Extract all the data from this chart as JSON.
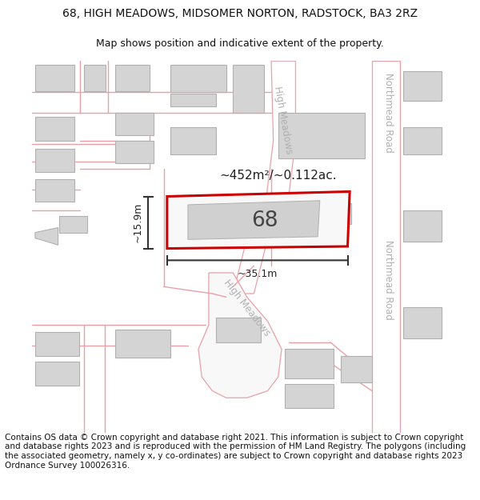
{
  "title": "68, HIGH MEADOWS, MIDSOMER NORTON, RADSTOCK, BA3 2RZ",
  "subtitle": "Map shows position and indicative extent of the property.",
  "footer": "Contains OS data © Crown copyright and database right 2021. This information is subject to Crown copyright and database rights 2023 and is reproduced with the permission of HM Land Registry. The polygons (including the associated geometry, namely x, y co-ordinates) are subject to Crown copyright and database rights 2023 Ordnance Survey 100026316.",
  "background_color": "#ffffff",
  "building_fill": "#d4d4d4",
  "building_edge": "#b0b0b0",
  "road_line": "#e8a0a8",
  "highlight_color": "#cc0000",
  "dim_color": "#333333",
  "street_label_color": "#b0b0b0",
  "area_label": "~452m²/~0.112ac.",
  "width_label": "~35.1m",
  "height_label": "~15.9m",
  "house_number": "68",
  "title_fontsize": 10,
  "subtitle_fontsize": 9,
  "footer_fontsize": 7.5
}
